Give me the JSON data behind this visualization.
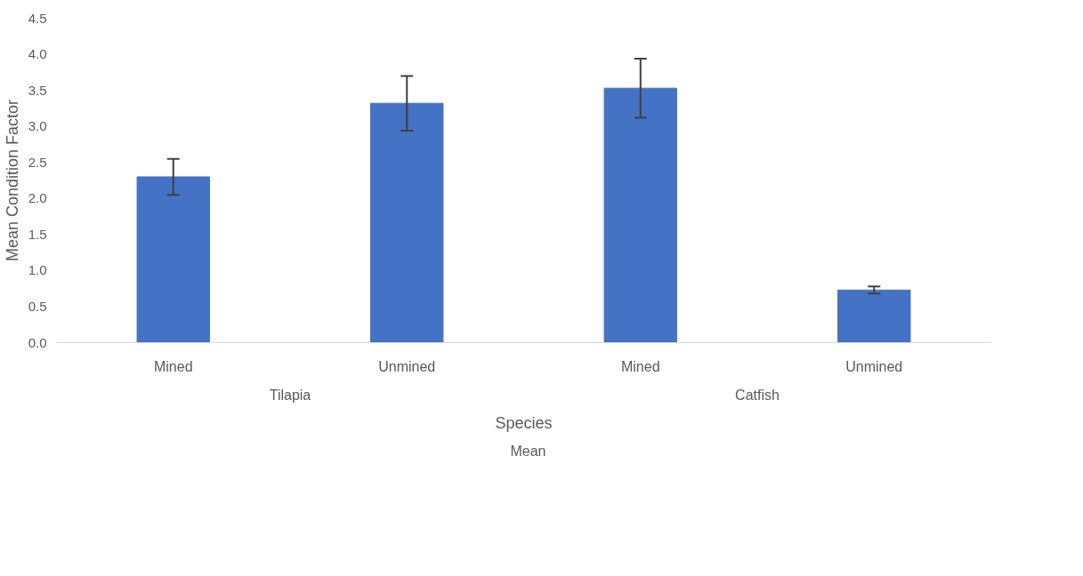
{
  "chart_data": {
    "type": "bar",
    "xlabel": "Species",
    "ylabel": "Mean Condition Factor",
    "categories": [
      "Mined",
      "Unmined",
      "Mined",
      "Unmined"
    ],
    "series": [
      {
        "name": "Mean",
        "color": "#4472c4",
        "values": [
          2.3,
          3.32,
          3.53,
          0.73
        ],
        "errors": [
          0.25,
          0.38,
          0.41,
          0.05
        ]
      }
    ],
    "annotations": [
      "Tilapia",
      "Catfish"
    ],
    "ylim": [
      0,
      4.5
    ],
    "yticks": [
      {
        "value": 0,
        "label": "0.0"
      },
      {
        "value": 0.5,
        "label": "0.5"
      },
      {
        "value": 1,
        "label": "1.0"
      },
      {
        "value": 1.5,
        "label": "1.5"
      },
      {
        "value": 2,
        "label": "2.0"
      },
      {
        "value": 2.5,
        "label": "2.5"
      },
      {
        "value": 3,
        "label": "3.0"
      },
      {
        "value": 3.5,
        "label": "3.5"
      },
      {
        "value": 4,
        "label": "4.0"
      },
      {
        "value": 4.5,
        "label": "4.5"
      }
    ],
    "grid": false,
    "legend": "bottom"
  }
}
